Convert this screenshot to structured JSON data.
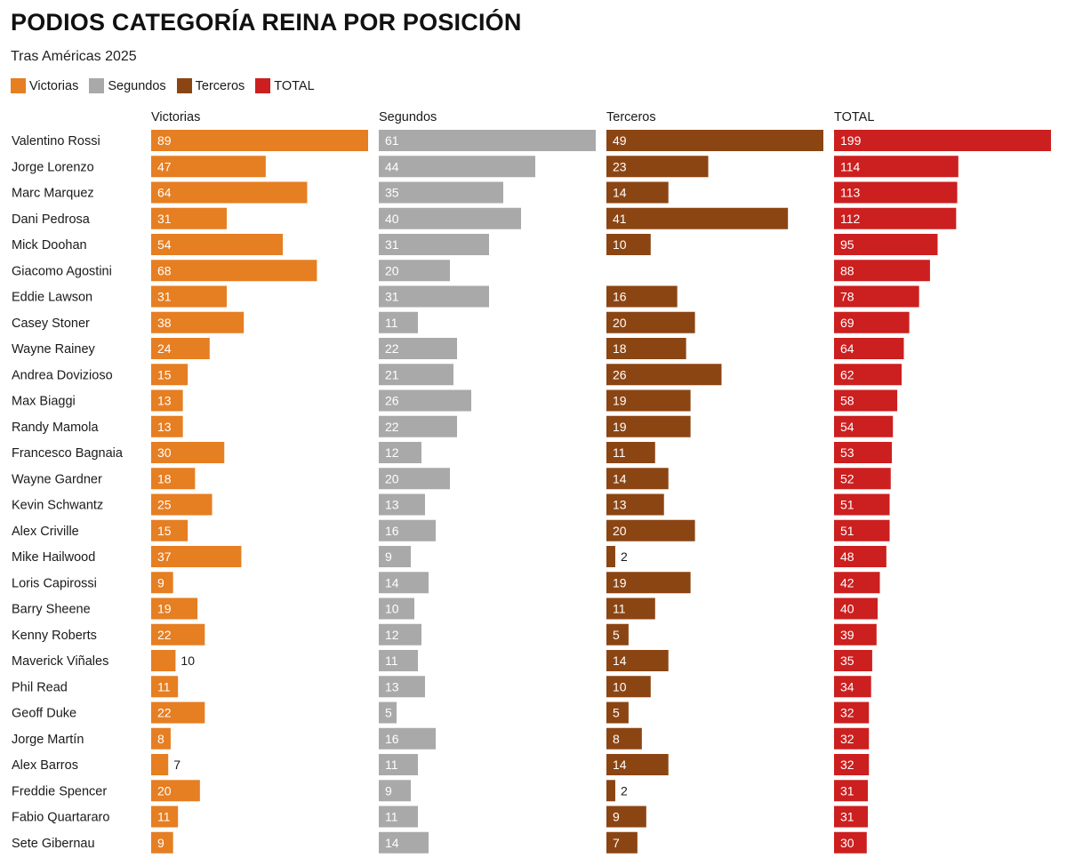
{
  "title": "PODIOS CATEGORÍA REINA POR POSICIÓN",
  "subtitle": "Tras Américas 2025",
  "legend": [
    {
      "label": "Victorias",
      "color": "#e67e22"
    },
    {
      "label": "Segundos",
      "color": "#a9a9a9"
    },
    {
      "label": "Terceros",
      "color": "#8b4513"
    },
    {
      "label": "TOTAL",
      "color": "#cc1f1f"
    }
  ],
  "chart_data": {
    "type": "bar",
    "title": "PODIOS CATEGORÍA REINA POR POSICIÓN",
    "subtitle": "Tras Américas 2025",
    "orientation": "horizontal",
    "categories": [
      "Valentino Rossi",
      "Jorge Lorenzo",
      "Marc Marquez",
      "Dani Pedrosa",
      "Mick Doohan",
      "Giacomo Agostini",
      "Eddie Lawson",
      "Casey Stoner",
      "Wayne Rainey",
      "Andrea Dovizioso",
      "Max Biaggi",
      "Randy Mamola",
      "Francesco Bagnaia",
      "Wayne Gardner",
      "Kevin Schwantz",
      "Alex Criville",
      "Mike Hailwood",
      "Loris Capirossi",
      "Barry Sheene",
      "Kenny Roberts",
      "Maverick Viñales",
      "Phil Read",
      "Geoff Duke",
      "Jorge Martín",
      "Alex Barros",
      "Freddie Spencer",
      "Fabio Quartararo",
      "Sete Gibernau"
    ],
    "series": [
      {
        "name": "Victorias",
        "color": "#e67e22",
        "max": 89,
        "values": [
          89,
          47,
          64,
          31,
          54,
          68,
          31,
          38,
          24,
          15,
          13,
          13,
          30,
          18,
          25,
          15,
          37,
          9,
          19,
          22,
          10,
          11,
          22,
          8,
          7,
          20,
          11,
          9
        ]
      },
      {
        "name": "Segundos",
        "color": "#a9a9a9",
        "max": 61,
        "values": [
          61,
          44,
          35,
          40,
          31,
          20,
          31,
          11,
          22,
          21,
          26,
          22,
          12,
          20,
          13,
          16,
          9,
          14,
          10,
          12,
          11,
          13,
          5,
          16,
          11,
          9,
          11,
          14
        ]
      },
      {
        "name": "Terceros",
        "color": "#8b4513",
        "max": 49,
        "values": [
          49,
          23,
          14,
          41,
          10,
          null,
          16,
          20,
          18,
          26,
          19,
          19,
          11,
          14,
          13,
          20,
          2,
          19,
          11,
          5,
          14,
          10,
          5,
          8,
          14,
          2,
          9,
          7
        ]
      },
      {
        "name": "TOTAL",
        "color": "#cc1f1f",
        "max": 199,
        "values": [
          199,
          114,
          113,
          112,
          95,
          88,
          78,
          69,
          64,
          62,
          58,
          54,
          53,
          52,
          51,
          51,
          48,
          42,
          40,
          39,
          35,
          34,
          32,
          32,
          32,
          31,
          31,
          30
        ]
      }
    ],
    "grid": false,
    "legend_position": "top-left"
  }
}
